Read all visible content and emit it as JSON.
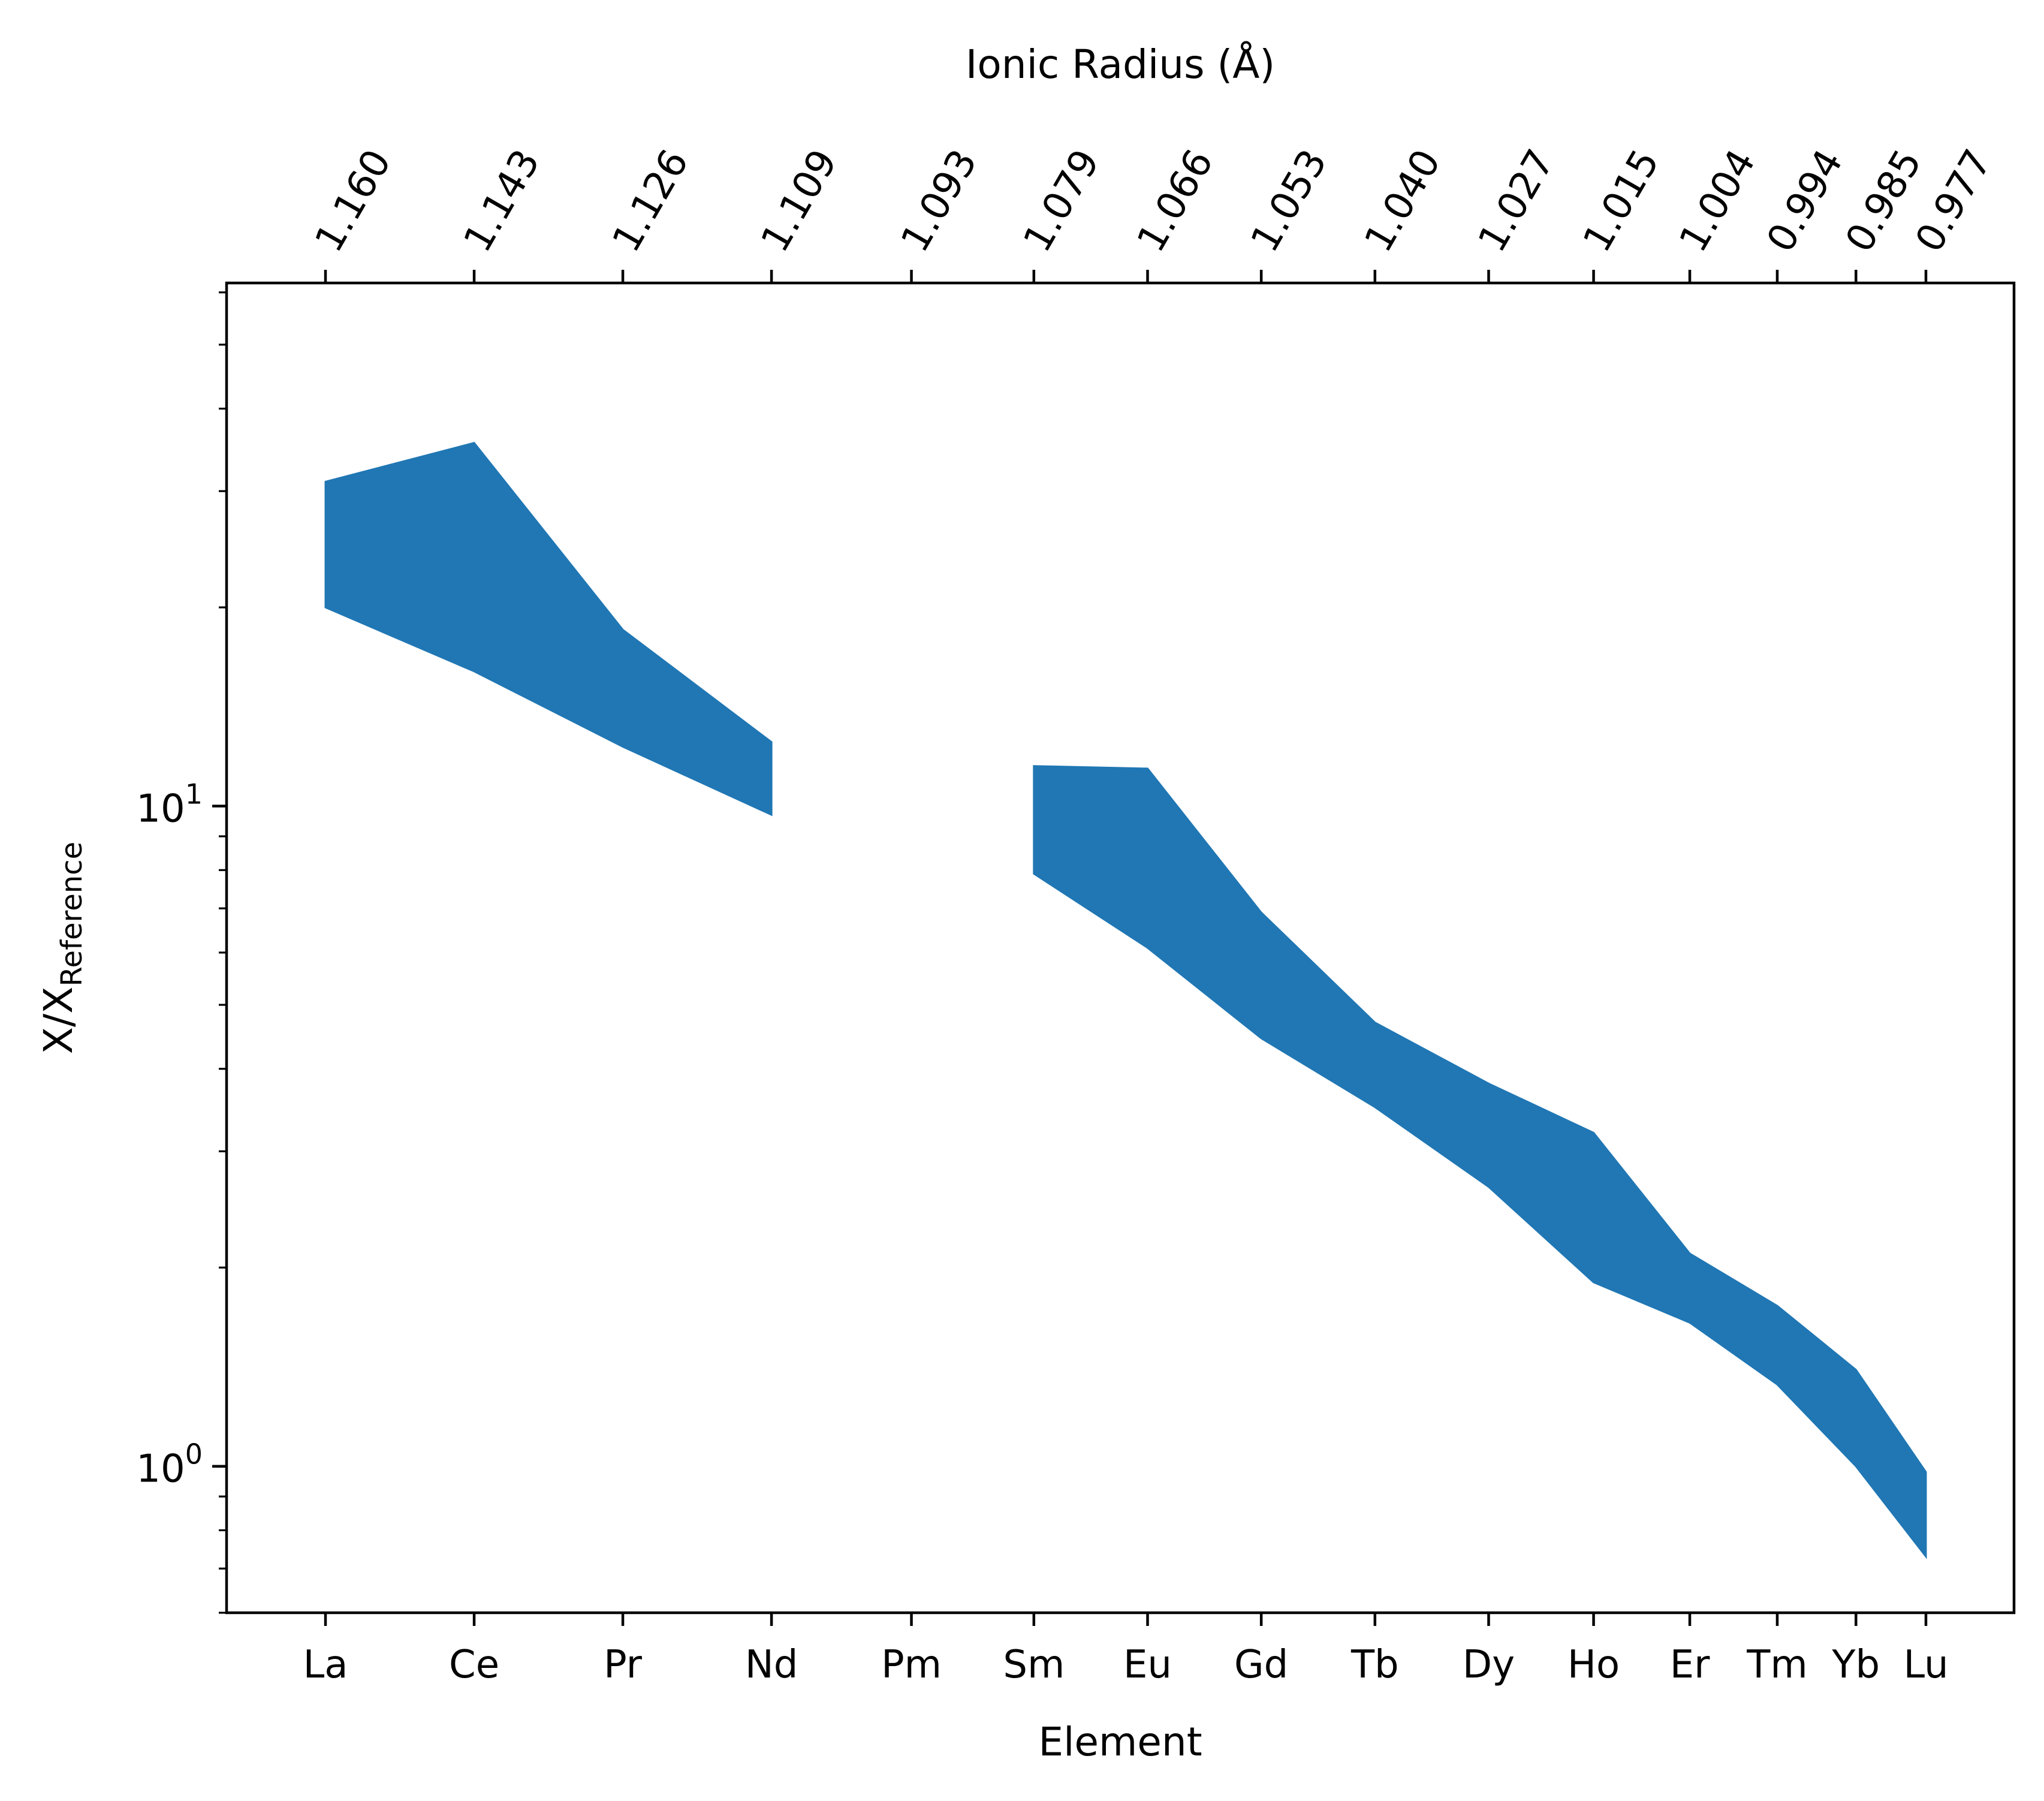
{
  "chart_data": {
    "type": "area",
    "xlabel": "Element",
    "ylabel": "X/X",
    "ylabel_subscript": "Reference",
    "secondary_xlabel": "Ionic Radius (Å)",
    "yscale": "log",
    "ylim": [
      0.6,
      62
    ],
    "y_ticks": [
      {
        "base": "10",
        "exp": "0",
        "value": 1
      },
      {
        "base": "10",
        "exp": "1",
        "value": 10
      }
    ],
    "categories": [
      "La",
      "Ce",
      "Pr",
      "Nd",
      "Pm",
      "Sm",
      "Eu",
      "Gd",
      "Tb",
      "Dy",
      "Ho",
      "Er",
      "Tm",
      "Yb",
      "Lu"
    ],
    "ionic_radius": [
      1.16,
      1.143,
      1.126,
      1.109,
      1.093,
      1.079,
      1.066,
      1.053,
      1.04,
      1.027,
      1.015,
      1.004,
      0.994,
      0.985,
      0.977
    ],
    "ionic_radius_labels": [
      "1.160",
      "1.143",
      "1.126",
      "1.109",
      "1.093",
      "1.079",
      "1.066",
      "1.053",
      "1.040",
      "1.027",
      "1.015",
      "1.004",
      "0.994",
      "0.985",
      "0.977"
    ],
    "series": [
      {
        "color": "#2077b4",
        "upper": [
          31.0,
          35.5,
          18.5,
          12.5,
          null,
          11.5,
          11.4,
          6.9,
          4.7,
          3.8,
          3.2,
          2.1,
          1.75,
          1.4,
          0.98
        ],
        "lower": [
          20.0,
          16.0,
          12.3,
          9.7,
          null,
          7.9,
          6.1,
          4.45,
          3.5,
          2.65,
          1.9,
          1.65,
          1.33,
          1.0,
          0.73
        ]
      }
    ],
    "grid": false,
    "legend": "none"
  }
}
